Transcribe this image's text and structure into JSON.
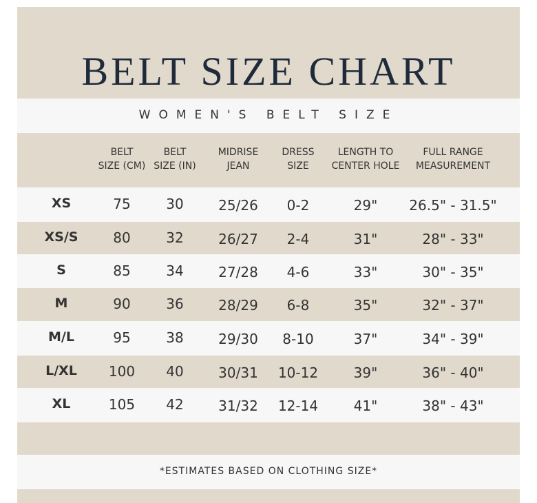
{
  "header": {
    "title": "BELT SIZE CHART",
    "subtitle": "WOMEN'S BELT SIZE"
  },
  "table": {
    "headers": [
      [
        "BELT",
        "SIZE (CM)"
      ],
      [
        "BELT",
        "SIZE (IN)"
      ],
      [
        "MIDRISE",
        "JEAN"
      ],
      [
        "DRESS",
        "SIZE"
      ],
      [
        "LENGTH TO",
        "CENTER HOLE"
      ],
      [
        "FULL RANGE",
        "MEASUREMENT"
      ]
    ],
    "rows": [
      [
        "XS",
        "75",
        "30",
        "25/26",
        "0-2",
        "29\"",
        "26.5\" - 31.5\""
      ],
      [
        "XS/S",
        "80",
        "32",
        "26/27",
        "2-4",
        "31\"",
        "28\" - 33\""
      ],
      [
        "S",
        "85",
        "34",
        "27/28",
        "4-6",
        "33\"",
        "30\" - 35\""
      ],
      [
        "M",
        "90",
        "36",
        "28/29",
        "6-8",
        "35\"",
        "32\" - 37\""
      ],
      [
        "M/L",
        "95",
        "38",
        "29/30",
        "8-10",
        "37\"",
        "34\" - 39\""
      ],
      [
        "L/XL",
        "100",
        "40",
        "30/31",
        "10-12",
        "39\"",
        "36\" - 40\""
      ],
      [
        "XL",
        "105",
        "42",
        "31/32",
        "12-14",
        "41\"",
        "38\" - 43\""
      ]
    ]
  },
  "footnote": "*ESTIMATES BASED ON CLOTHING SIZE*"
}
